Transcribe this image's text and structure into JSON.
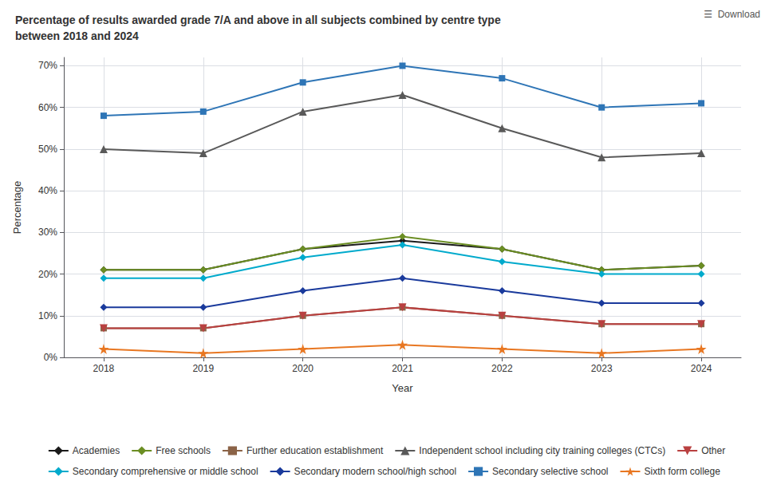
{
  "chart_data": {
    "type": "line",
    "title": "Percentage of results awarded grade 7/A and above in all subjects combined by centre type\nbetween 2018 and 2024",
    "xlabel": "Year",
    "ylabel": "Percentage",
    "x": [
      2018,
      2019,
      2020,
      2021,
      2022,
      2023,
      2024
    ],
    "series": [
      {
        "name": "Academies",
        "color": "#1a1a1a",
        "marker": "diamond",
        "values": [
          21,
          21,
          26,
          28,
          26,
          21,
          22
        ]
      },
      {
        "name": "Free schools",
        "color": "#6b8e23",
        "marker": "diamond",
        "values": [
          21,
          21,
          26,
          29,
          26,
          21,
          22
        ]
      },
      {
        "name": "Further education establishment",
        "color": "#8b6347",
        "marker": "square",
        "values": [
          7,
          7,
          10,
          12,
          10,
          8,
          8
        ]
      },
      {
        "name": "Independent school including city training colleges (CTCs)",
        "color": "#595959",
        "marker": "triangle-up",
        "values": [
          50,
          49,
          59,
          63,
          55,
          48,
          49
        ]
      },
      {
        "name": "Other",
        "color": "#b94040",
        "marker": "triangle-down",
        "values": [
          7,
          7,
          10,
          12,
          10,
          8,
          8
        ]
      },
      {
        "name": "Secondary comprehensive or middle school",
        "color": "#00aacc",
        "marker": "diamond",
        "values": [
          19,
          19,
          24,
          27,
          23,
          20,
          20
        ]
      },
      {
        "name": "Secondary modern school/high school",
        "color": "#1a3a9c",
        "marker": "diamond",
        "values": [
          12,
          12,
          16,
          19,
          16,
          13,
          13
        ]
      },
      {
        "name": "Secondary selective school",
        "color": "#2e75b6",
        "marker": "square",
        "values": [
          58,
          59,
          66,
          70,
          67,
          60,
          61
        ]
      },
      {
        "name": "Sixth form college",
        "color": "#e87722",
        "marker": "star",
        "values": [
          2,
          1,
          2,
          3,
          2,
          1,
          2
        ]
      }
    ],
    "xlim": [
      2017.6,
      2024.4
    ],
    "xticks": [
      2018,
      2019,
      2020,
      2021,
      2022,
      2023,
      2024
    ],
    "ylim": [
      0,
      72
    ],
    "yticks": [
      {
        "value": 0,
        "label": "0%"
      },
      {
        "value": 10,
        "label": "10%"
      },
      {
        "value": 20,
        "label": "20%"
      },
      {
        "value": 30,
        "label": "30%"
      },
      {
        "value": 40,
        "label": "40%"
      },
      {
        "value": 50,
        "label": "50%"
      },
      {
        "value": 60,
        "label": "60%"
      },
      {
        "value": 70,
        "label": "70%"
      }
    ],
    "grid": true,
    "legend": "bottom",
    "annotations": [
      "☰  Download"
    ]
  }
}
